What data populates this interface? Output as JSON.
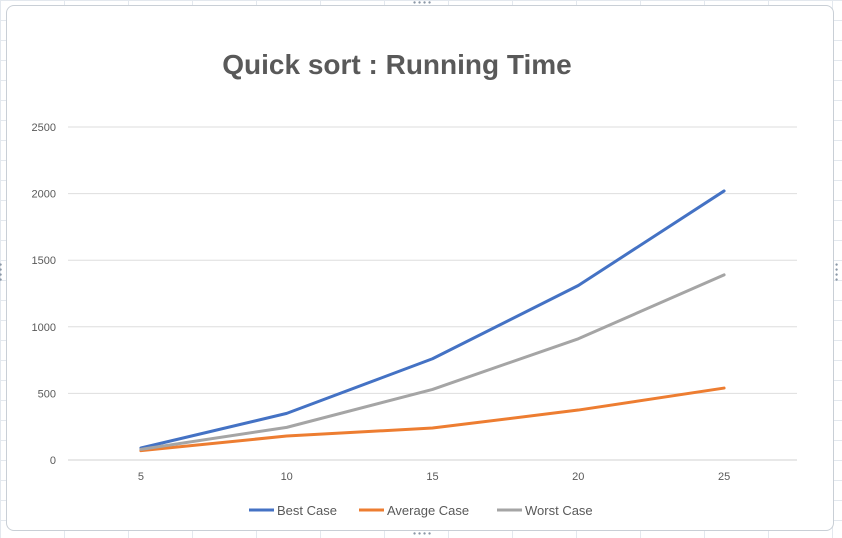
{
  "chart_data": {
    "type": "line",
    "title": "Quick sort : Running Time",
    "xlabel": "",
    "ylabel": "",
    "categories": [
      "5",
      "10",
      "15",
      "20",
      "25"
    ],
    "y_ticks": [
      "0",
      "500",
      "1000",
      "1500",
      "2000",
      "2500"
    ],
    "ylim": [
      0,
      2500
    ],
    "grid": "horizontal",
    "legend_position": "bottom",
    "series": [
      {
        "name": "Best Case",
        "color": "#4472c4",
        "values": [
          90,
          350,
          760,
          1310,
          2020
        ]
      },
      {
        "name": "Average Case",
        "color": "#ed7d31",
        "values": [
          70,
          180,
          240,
          375,
          540
        ]
      },
      {
        "name": "Worst Case",
        "color": "#a5a5a5",
        "values": [
          80,
          245,
          530,
          910,
          1390
        ]
      }
    ]
  },
  "frame": {
    "handle_glyph": "∙∙∙∙"
  }
}
